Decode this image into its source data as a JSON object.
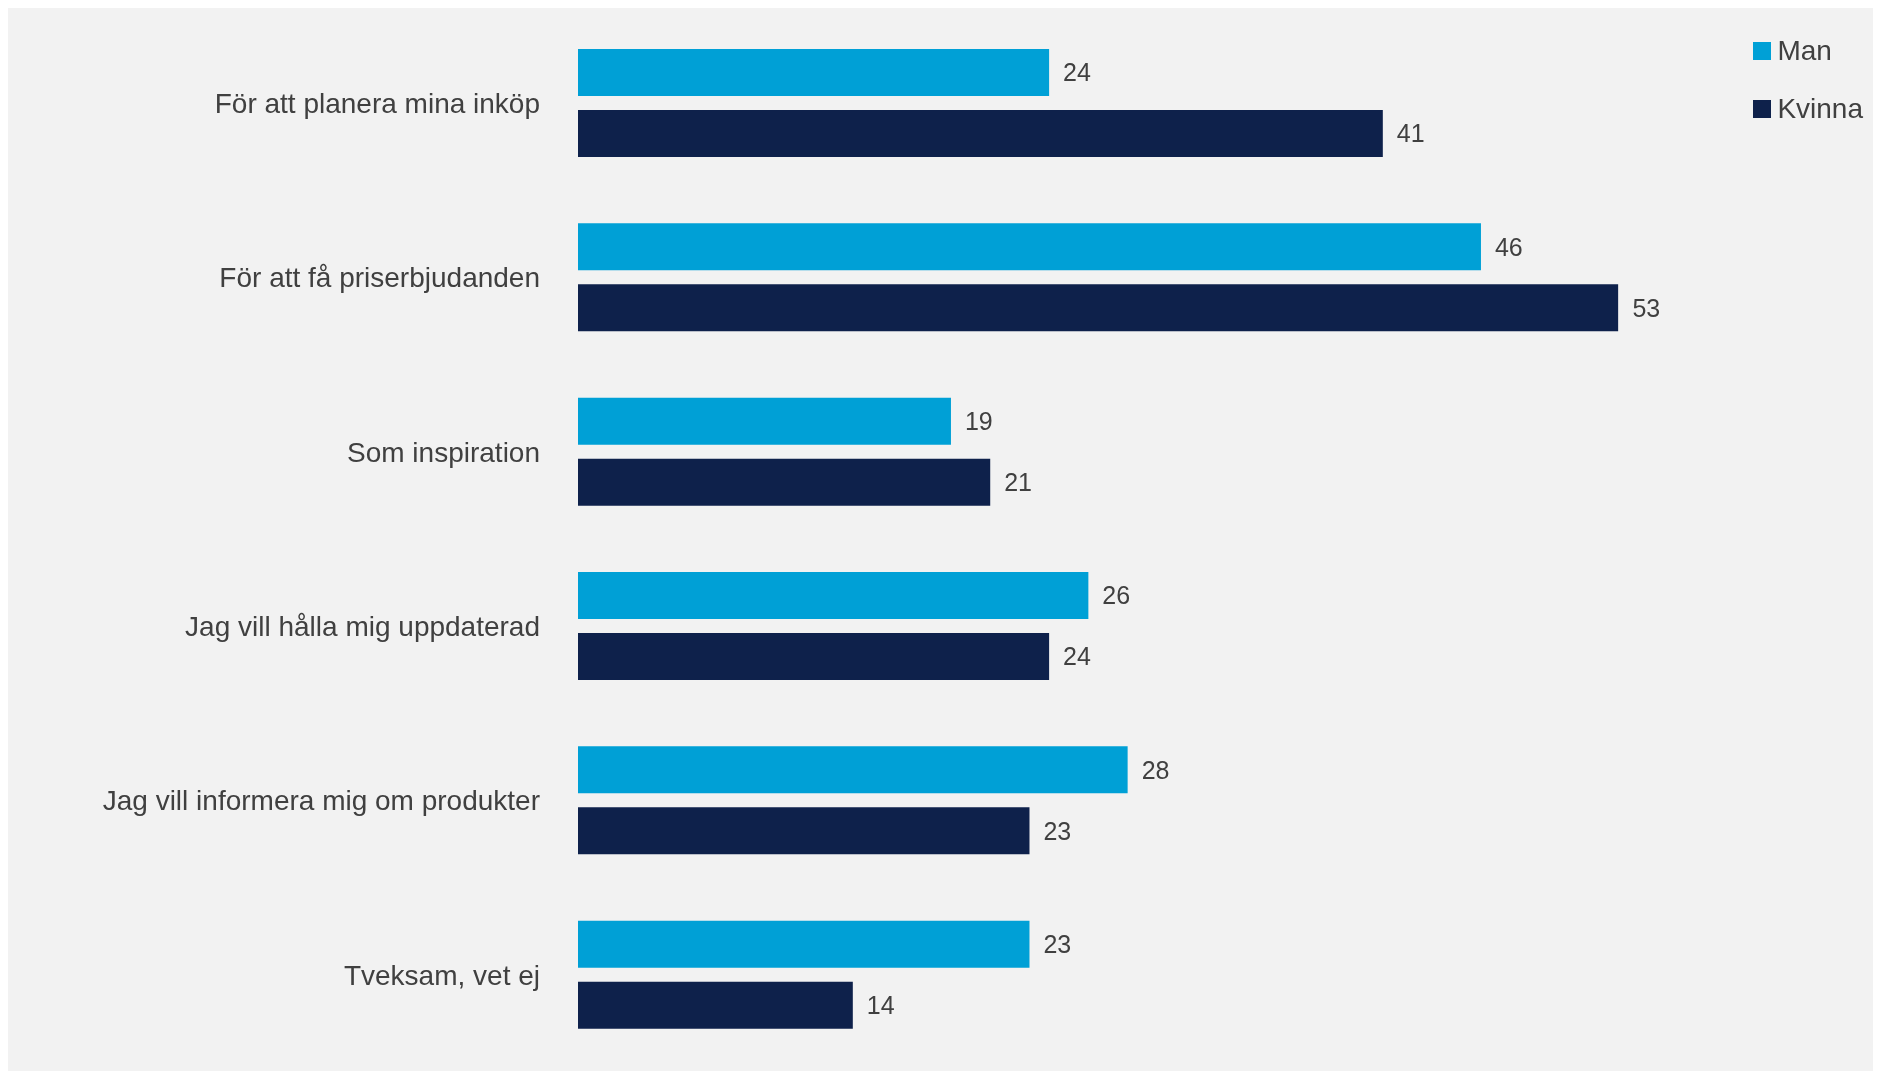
{
  "chart_data": {
    "type": "bar",
    "orientation": "horizontal",
    "categories": [
      "För att planera mina inköp",
      "För att få priserbjudanden",
      "Som inspiration",
      "Jag vill hålla mig uppdaterad",
      "Jag vill informera mig om produkter",
      "Tveksam, vet ej"
    ],
    "series": [
      {
        "name": "Man",
        "color": "#00a0d6",
        "values": [
          24,
          46,
          19,
          26,
          28,
          23
        ]
      },
      {
        "name": "Kvinna",
        "color": "#0e214b",
        "values": [
          41,
          53,
          21,
          24,
          23,
          14
        ]
      }
    ],
    "tick_labels": "y",
    "legend": "top right",
    "data_labels": true
  }
}
